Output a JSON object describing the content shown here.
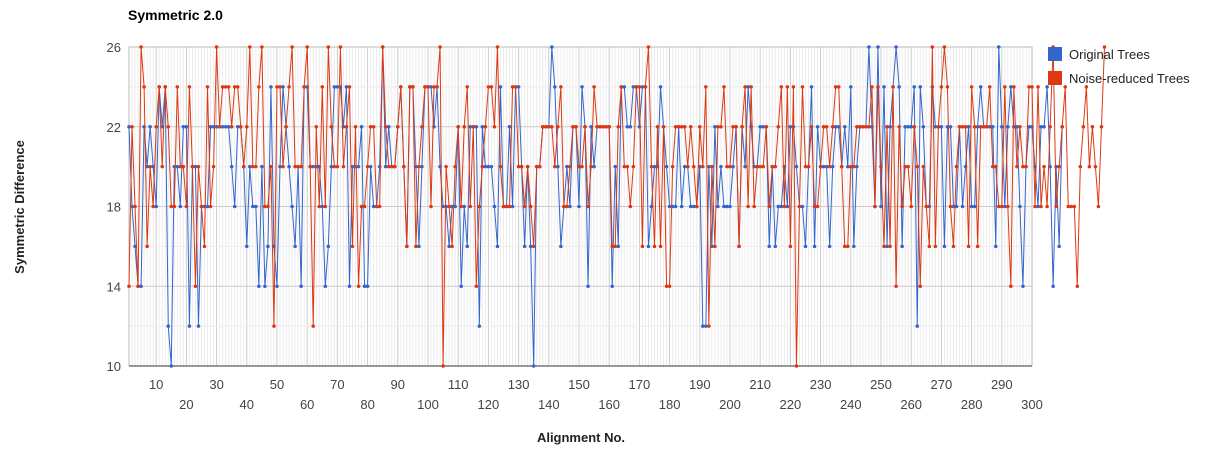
{
  "chart_data": {
    "type": "line",
    "title": "Symmetric 2.0",
    "xlabel": "Alignment No.",
    "ylabel": "Symmetric Difference",
    "xlim": [
      1,
      300
    ],
    "ylim": [
      10,
      26
    ],
    "y_ticks": [
      "10",
      "14",
      "18",
      "22",
      "26"
    ],
    "x_ticks_row1": [
      "10",
      "30",
      "50",
      "70",
      "90",
      "110",
      "130",
      "150",
      "170",
      "190",
      "210",
      "230",
      "250",
      "270",
      "290"
    ],
    "x_ticks_row2": [
      "20",
      "40",
      "60",
      "80",
      "100",
      "120",
      "140",
      "160",
      "180",
      "200",
      "220",
      "240",
      "260",
      "280",
      "300"
    ],
    "grid": true,
    "legend_position": "right",
    "series": [
      {
        "name": "Original Trees",
        "color": "#3366cc",
        "values": [
          22,
          18,
          16,
          14,
          14,
          22,
          20,
          22,
          20,
          18,
          24,
          22,
          24,
          12,
          10,
          20,
          20,
          18,
          22,
          22,
          12,
          20,
          20,
          12,
          18,
          18,
          18,
          22,
          22,
          22,
          22,
          22,
          22,
          22,
          20,
          18,
          22,
          22,
          20,
          16,
          20,
          18,
          18,
          14,
          20,
          14,
          16,
          24,
          16,
          14,
          20,
          24,
          22,
          20,
          18,
          16,
          20,
          14,
          24,
          24,
          20,
          20,
          20,
          20,
          18,
          14,
          16,
          20,
          24,
          24,
          24,
          22,
          24,
          14,
          20,
          20,
          20,
          22,
          14,
          14,
          20,
          18,
          18,
          20,
          26,
          20,
          22,
          20,
          20,
          22,
          24,
          20,
          16,
          24,
          24,
          20,
          16,
          20,
          24,
          24,
          24,
          22,
          24,
          20,
          18,
          18,
          16,
          18,
          18,
          22,
          14,
          18,
          16,
          22,
          22,
          22,
          12,
          22,
          20,
          20,
          20,
          18,
          16,
          24,
          18,
          18,
          22,
          18,
          24,
          24,
          20,
          16,
          20,
          16,
          10,
          20,
          20,
          22,
          22,
          22,
          26,
          24,
          20,
          16,
          18,
          20,
          18,
          22,
          22,
          18,
          24,
          22,
          14,
          22,
          20,
          22,
          22,
          22,
          22,
          22,
          14,
          20,
          16,
          24,
          24,
          22,
          22,
          24,
          24,
          22,
          24,
          24,
          16,
          18,
          20,
          20,
          24,
          22,
          20,
          18,
          18,
          18,
          22,
          18,
          20,
          20,
          18,
          18,
          18,
          20,
          12,
          12,
          20,
          16,
          22,
          18,
          20,
          18,
          18,
          18,
          20,
          22,
          16,
          22,
          20,
          24,
          22,
          20,
          20,
          22,
          22,
          22,
          16,
          20,
          16,
          18,
          18,
          20,
          18,
          22,
          22,
          20,
          18,
          18,
          16,
          20,
          24,
          16,
          22,
          20,
          20,
          20,
          16,
          20,
          22,
          22,
          20,
          22,
          20,
          24,
          16,
          20,
          22,
          22,
          22,
          26,
          22,
          18,
          26,
          18,
          24,
          16,
          22,
          24,
          26,
          24,
          16,
          22,
          22,
          22,
          24,
          12,
          24,
          22,
          18,
          18,
          24,
          22,
          22,
          22,
          16,
          22,
          22,
          18,
          18,
          22,
          18,
          20,
          22,
          18,
          18,
          22,
          24,
          22,
          22,
          22,
          22,
          16,
          26,
          22,
          18,
          22,
          24,
          22,
          22,
          18,
          14,
          20,
          22,
          22,
          20,
          18,
          22,
          22,
          24,
          20,
          14,
          20,
          16,
          22
        ],
        "marker": "point"
      },
      {
        "name": "Noise-reduced Trees",
        "color": "#dc3912",
        "values": [
          14,
          22,
          18,
          14,
          26,
          24,
          16,
          20,
          18,
          22,
          24,
          20,
          24,
          22,
          18,
          18,
          24,
          20,
          20,
          18,
          24,
          20,
          14,
          20,
          18,
          16,
          24,
          18,
          20,
          26,
          22,
          24,
          24,
          24,
          22,
          24,
          24,
          22,
          20,
          22,
          26,
          20,
          20,
          24,
          26,
          18,
          18,
          20,
          12,
          24,
          24,
          20,
          22,
          24,
          26,
          20,
          20,
          20,
          24,
          26,
          20,
          12,
          22,
          18,
          24,
          18,
          26,
          22,
          20,
          20,
          26,
          20,
          22,
          24,
          16,
          22,
          14,
          18,
          18,
          20,
          22,
          22,
          18,
          18,
          26,
          22,
          20,
          20,
          20,
          22,
          24,
          20,
          16,
          24,
          24,
          16,
          20,
          22,
          24,
          24,
          18,
          24,
          24,
          26,
          10,
          20,
          18,
          16,
          20,
          22,
          18,
          22,
          24,
          18,
          22,
          14,
          18,
          20,
          22,
          24,
          24,
          22,
          26,
          20,
          18,
          18,
          18,
          24,
          24,
          20,
          20,
          18,
          20,
          18,
          16,
          20,
          20,
          22,
          22,
          22,
          22,
          20,
          22,
          24,
          18,
          18,
          20,
          22,
          22,
          20,
          20,
          22,
          18,
          20,
          24,
          22,
          22,
          22,
          22,
          22,
          16,
          16,
          22,
          24,
          20,
          20,
          18,
          20,
          24,
          24,
          16,
          24,
          26,
          20,
          16,
          22,
          16,
          22,
          14,
          14,
          20,
          22,
          22,
          22,
          22,
          20,
          22,
          20,
          18,
          22,
          20,
          24,
          12,
          20,
          16,
          22,
          22,
          24,
          20,
          20,
          22,
          22,
          16,
          22,
          24,
          18,
          24,
          18,
          20,
          20,
          20,
          22,
          18,
          20,
          20,
          22,
          24,
          18,
          24,
          16,
          24,
          10,
          18,
          24,
          20,
          20,
          22,
          18,
          18,
          20,
          22,
          22,
          20,
          22,
          24,
          24,
          20,
          16,
          16,
          20,
          20,
          22,
          22,
          22,
          22,
          22,
          24,
          18,
          24,
          20,
          16,
          22,
          16,
          24,
          14,
          22,
          18,
          20,
          20,
          18,
          22,
          20,
          14,
          20,
          18,
          16,
          26,
          16,
          22,
          24,
          26,
          24,
          18,
          16,
          20,
          22,
          22,
          22,
          16,
          24,
          22,
          16,
          22,
          22,
          22,
          24,
          20,
          20,
          18,
          18,
          24,
          18,
          14,
          24,
          20,
          22,
          20,
          20,
          24,
          24,
          18,
          24,
          18,
          20,
          18,
          22,
          26,
          18,
          20,
          22,
          24,
          18,
          18,
          18,
          14,
          20,
          22,
          24,
          20,
          22,
          20,
          18,
          22,
          26
        ],
        "marker": "point"
      }
    ]
  }
}
